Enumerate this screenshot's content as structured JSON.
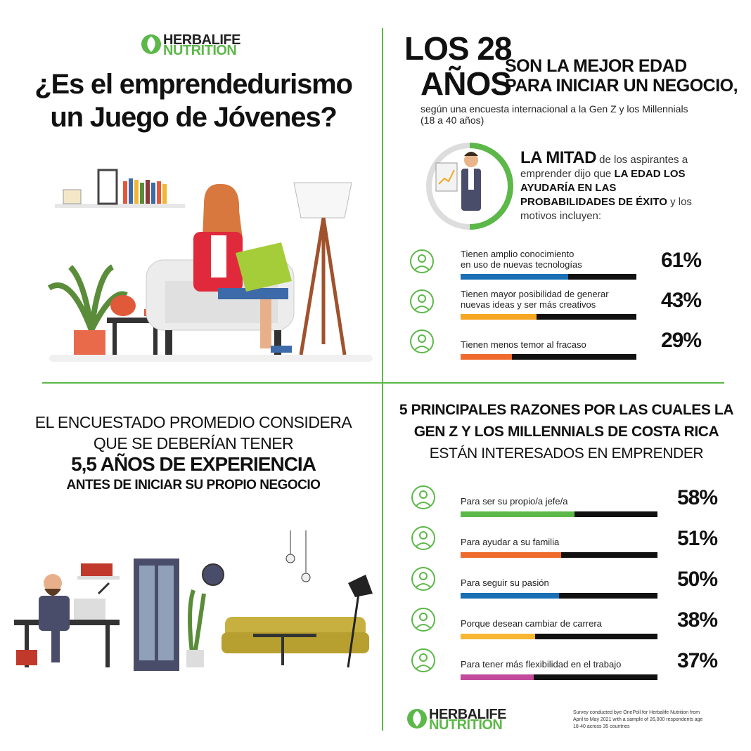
{
  "logo_top": {
    "line1": "HERBALIFE",
    "line2": "NUTRITION"
  },
  "title": {
    "line1": "¿Es el emprendedurismo",
    "line2": "un Juego de Jóvenes?"
  },
  "headline": {
    "age": "LOS 28",
    "years": "AÑOS",
    "line1": "SON LA MEJOR EDAD",
    "line2": "PARA INICIAR UN NEGOCIO,",
    "source": [
      "según una encuesta internacional a la Gen Z y los Millennials",
      "(18 a 40 años)"
    ]
  },
  "half": {
    "lead": "LA MITAD",
    "text1": "de los aspirantes a emprender dijo que",
    "bold": "LA EDAD LOS AYUDARÍA EN LAS PROBABILIDADES DE ÉXITO",
    "text2": "y los motivos incluyen:"
  },
  "motives": {
    "items": [
      {
        "label": [
          "Tienen amplio conocimiento",
          "en uso de nuevas tecnologías"
        ],
        "value": 61,
        "value_label": "61%",
        "color": "#1a6fb5"
      },
      {
        "label": [
          "Tienen mayor posibilidad de generar",
          "nuevas ideas y ser más creativos"
        ],
        "value": 43,
        "value_label": "43%",
        "color": "#f5a623"
      },
      {
        "label": [
          "Tienen menos temor al fracaso"
        ],
        "value": 29,
        "value_label": "29%",
        "color": "#ef6b2d"
      }
    ]
  },
  "experience": {
    "line1": "EL ENCUESTADO PROMEDIO CONSIDERA",
    "line2": "QUE SE DEBERÍAN TENER",
    "line3": "5,5 AÑOS DE EXPERIENCIA",
    "line4": "ANTES DE INICIAR SU PROPIO NEGOCIO"
  },
  "reasons": {
    "heading": [
      "5 PRINCIPALES RAZONES POR LAS CUALES LA",
      "GEN Z Y LOS MILLENNIALS DE COSTA RICA",
      "ESTÁN INTERESADOS EN EMPRENDER"
    ],
    "items": [
      {
        "label": "Para ser su propio/a jefe/a",
        "value": 58,
        "value_label": "58%",
        "color": "#5cb848"
      },
      {
        "label": "Para ayudar a su familia",
        "value": 51,
        "value_label": "51%",
        "color": "#ef6b2d"
      },
      {
        "label": "Para seguir su pasión",
        "value": 50,
        "value_label": "50%",
        "color": "#1a6fb5"
      },
      {
        "label": "Porque desean cambiar de carrera",
        "value": 38,
        "value_label": "38%",
        "color": "#f7b733"
      },
      {
        "label": "Para tener más flexibilidad en el trabajo",
        "value": 37,
        "value_label": "37%",
        "color": "#c24b9e"
      }
    ]
  },
  "logo_bottom": {
    "line1": "HERBALIFE",
    "line2": "NUTRITION"
  },
  "footnote": [
    "Survey conducted bye OnePoll for Herbalife Nutrition from",
    "April to May 2021 with a sample of 26,000 respondents age",
    "18-40 across 35 countries"
  ]
}
